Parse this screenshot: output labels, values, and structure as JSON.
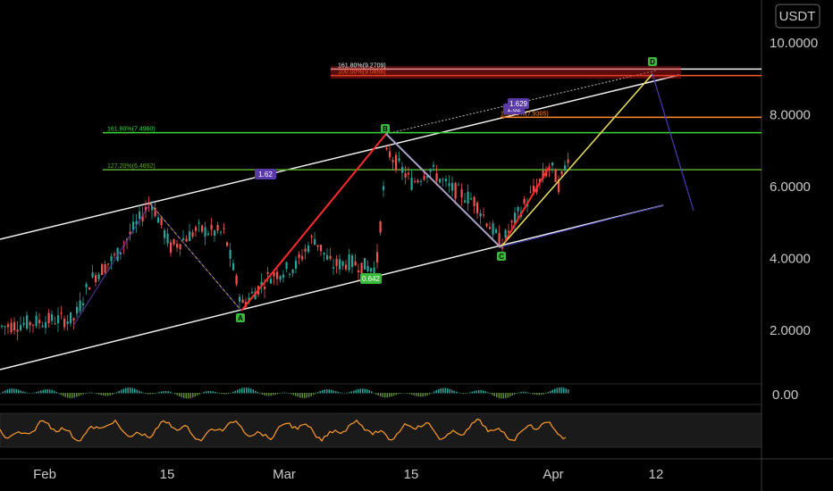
{
  "currency_badge": "USDT",
  "chart_data": {
    "type": "candlestick",
    "y_axis": {
      "ticks": [
        "10.0000",
        "8.0000",
        "6.0000",
        "4.0000",
        "2.0000"
      ],
      "ylim": [
        0.4,
        10.4
      ]
    },
    "x_axis": {
      "ticks": [
        "Feb",
        "15",
        "Mar",
        "15",
        "Apr",
        "12"
      ]
    },
    "oscillator_axis": {
      "ticks": [
        "0.00"
      ]
    },
    "patterns": {
      "points": [
        {
          "label": "A",
          "date": "Feb 23",
          "value": 2.55
        },
        {
          "label": "B",
          "date": "Mar 12",
          "value": 7.35
        },
        {
          "label": "C",
          "date": "Mar 25",
          "value": 4.3
        },
        {
          "label": "D",
          "date": "Apr 12",
          "value": 9.3
        }
      ],
      "ratio_labels": [
        "1.62",
        "1.62",
        "1.629",
        "0.642"
      ]
    },
    "fib_levels": [
      {
        "label": "161.80%(9.2709)",
        "value": 9.27,
        "color": "#f0f0f0"
      },
      {
        "label": "100.00%(9.0856)",
        "value": 9.09,
        "color": "#ff5a2a"
      },
      {
        "label": "100.00%(7.9305)",
        "value": 7.93,
        "color": "#ff8a2a"
      },
      {
        "label": "161.80%(7.4960)",
        "value": 7.5,
        "color": "#38d838"
      },
      {
        "label": "127.20%(6.4692)",
        "value": 6.47,
        "color": "#5aa82a"
      }
    ]
  }
}
